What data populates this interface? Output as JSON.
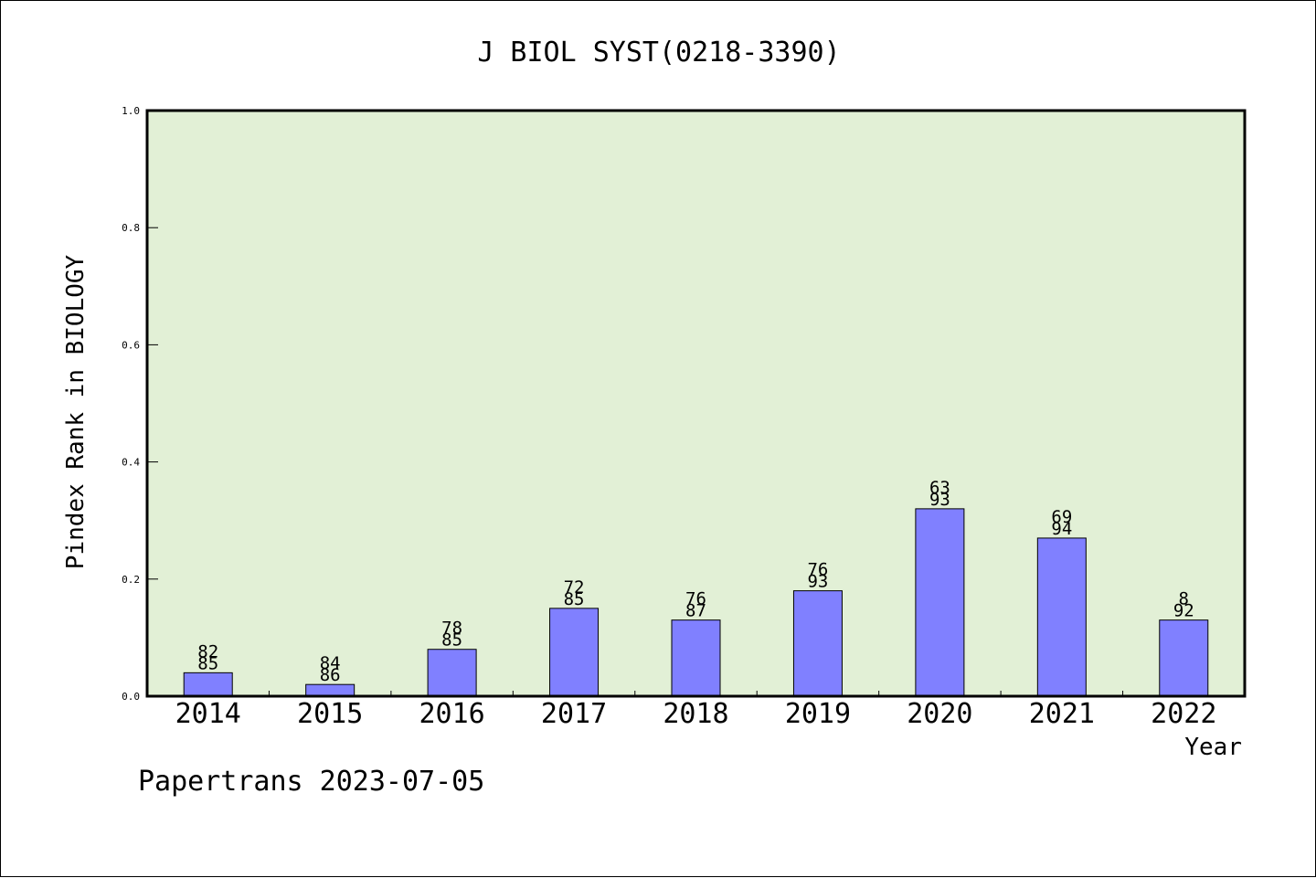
{
  "chart_data": {
    "type": "bar",
    "title": "J BIOL SYST(0218-3390)",
    "xlabel": "Year",
    "ylabel": "Pindex Rank in BIOLOGY",
    "ylim": [
      0,
      1.0
    ],
    "yticks": [
      "0.0",
      "0.2",
      "0.4",
      "0.6",
      "0.8",
      "1.0"
    ],
    "categories": [
      "2014",
      "2015",
      "2016",
      "2017",
      "2018",
      "2019",
      "2020",
      "2021",
      "2022"
    ],
    "values": [
      0.04,
      0.02,
      0.08,
      0.15,
      0.13,
      0.18,
      0.32,
      0.27,
      0.13
    ],
    "label_top": [
      "82",
      "84",
      "78",
      "72",
      "76",
      "76",
      "63",
      "69",
      "8"
    ],
    "label_bottom": [
      "85",
      "86",
      "85",
      "85",
      "87",
      "93",
      "93",
      "94",
      "92"
    ],
    "grid": false,
    "legend": "none",
    "colors": {
      "bar": "#8080ff",
      "plot_background": "#e2f0d6",
      "axis": "#000000"
    }
  },
  "footer": "Papertrans 2023-07-05"
}
